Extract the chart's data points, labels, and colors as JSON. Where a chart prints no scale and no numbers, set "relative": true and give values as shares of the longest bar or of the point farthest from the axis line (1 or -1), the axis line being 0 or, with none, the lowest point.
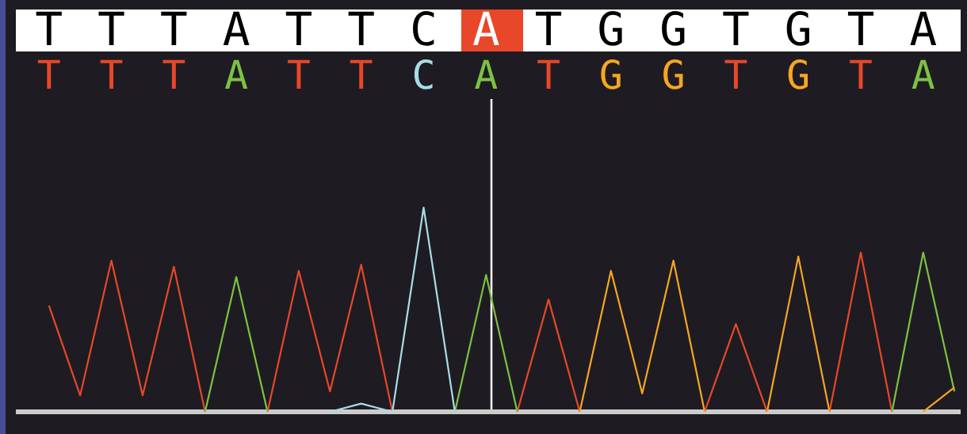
{
  "chart_data": {
    "type": "line",
    "relative": true,
    "categories": [
      "T",
      null,
      "T",
      null,
      "T",
      null,
      "A",
      null,
      "T",
      null,
      "T",
      null,
      "C",
      null,
      "A",
      null,
      "T",
      null,
      "G",
      null,
      "G",
      null,
      "T",
      null,
      "G",
      null,
      "T",
      null,
      "A",
      null
    ],
    "series": [
      {
        "color": "#e8472a",
        "values": [
          0.52,
          0.08,
          0.74,
          0.08,
          0.71,
          0,
          null,
          0,
          0.69,
          0.1,
          0.72,
          0,
          null,
          null,
          null,
          0,
          0.55,
          0,
          null,
          null,
          null,
          0,
          0.43,
          0,
          null,
          0,
          0.78,
          0,
          null,
          null
        ]
      },
      {
        "color": "#7cc242",
        "values": [
          null,
          null,
          null,
          null,
          null,
          0,
          0.66,
          0,
          null,
          null,
          null,
          null,
          null,
          0,
          0.67,
          0,
          null,
          null,
          null,
          null,
          null,
          null,
          null,
          null,
          null,
          null,
          null,
          0,
          0.78,
          0.1
        ]
      },
      {
        "color": "#a8dce8",
        "values": [
          null,
          null,
          null,
          null,
          null,
          null,
          null,
          null,
          null,
          0,
          0.04,
          0,
          1.0,
          0,
          null,
          null,
          null,
          null,
          null,
          null,
          null,
          null,
          null,
          null,
          null,
          null,
          null,
          null,
          null,
          null
        ]
      },
      {
        "color": "#f5a623",
        "values": [
          null,
          null,
          null,
          null,
          null,
          null,
          null,
          null,
          null,
          null,
          null,
          null,
          null,
          null,
          null,
          null,
          null,
          0,
          0.69,
          0.09,
          0.74,
          0,
          null,
          0,
          0.76,
          0,
          null,
          null,
          0,
          0.12
        ]
      }
    ],
    "annotations": [
      "T",
      "T",
      "T",
      "A",
      "T",
      "T",
      "C",
      "A",
      "T",
      "G",
      "G",
      "T",
      "G",
      "T",
      "A"
    ]
  }
}
